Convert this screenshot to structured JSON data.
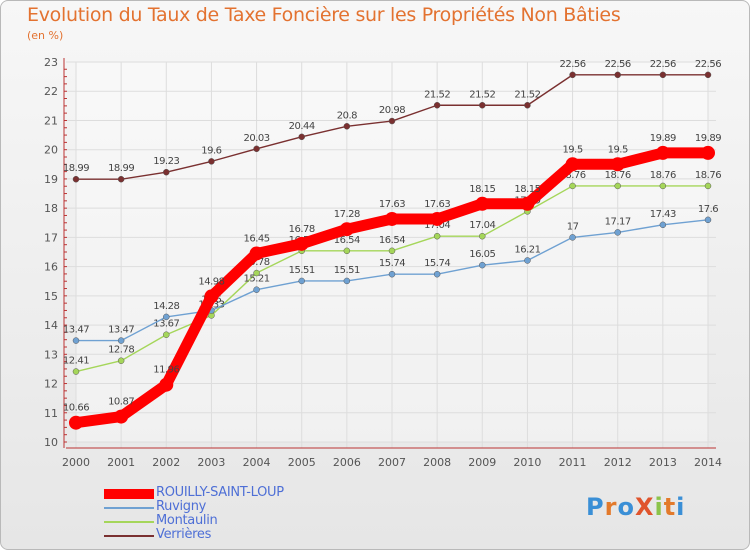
{
  "header": {
    "title": "Evolution du Taux de Taxe Foncière sur les Propriétés Non Bâties",
    "subtitle": "(en %)"
  },
  "logo": {
    "text": "ProXiti",
    "letters": [
      {
        "ch": "P",
        "color": "#3a8fd6"
      },
      {
        "ch": "r",
        "color": "#e37a2b"
      },
      {
        "ch": "o",
        "color": "#3a8fd6"
      },
      {
        "ch": "X",
        "color": "#e0542c"
      },
      {
        "ch": "i",
        "color": "#8bc34a"
      },
      {
        "ch": "t",
        "color": "#e37a2b"
      },
      {
        "ch": "i",
        "color": "#3a8fd6"
      }
    ]
  },
  "chart_data": {
    "type": "line",
    "title": "Evolution du Taux de Taxe Foncière sur les Propriétés Non Bâties",
    "ylabel": "(en %)",
    "x": [
      2000,
      2001,
      2002,
      2003,
      2004,
      2005,
      2006,
      2007,
      2008,
      2009,
      2010,
      2011,
      2012,
      2013,
      2014
    ],
    "ylim": [
      10,
      23
    ],
    "yticks": [
      10,
      11,
      12,
      13,
      14,
      15,
      16,
      17,
      18,
      19,
      20,
      21,
      22,
      23
    ],
    "grid": true,
    "legend": "bottom-left",
    "series": [
      {
        "name": "ROUILLY-SAINT-LOUP",
        "color": "#ff0000",
        "values": [
          10.66,
          10.87,
          11.96,
          14.98,
          16.45,
          16.78,
          17.28,
          17.63,
          17.63,
          18.15,
          18.15,
          19.5,
          19.5,
          19.89,
          19.89
        ]
      },
      {
        "name": "Ruvigny",
        "color": "#6fa1d2",
        "values": [
          13.47,
          13.47,
          14.28,
          14.5,
          15.21,
          15.51,
          15.51,
          15.74,
          15.74,
          16.05,
          16.21,
          17,
          17.17,
          17.43,
          17.6
        ]
      },
      {
        "name": "Montaulin",
        "color": "#a5d65a",
        "values": [
          12.41,
          12.78,
          13.67,
          14.33,
          15.78,
          16.54,
          16.54,
          16.54,
          17.04,
          17.04,
          17.89,
          18.76,
          18.76,
          18.76,
          18.76
        ]
      },
      {
        "name": "Verrières",
        "color": "#7a3030",
        "values": [
          18.99,
          18.99,
          19.23,
          19.6,
          20.03,
          20.44,
          20.8,
          20.98,
          21.52,
          21.52,
          21.52,
          22.56,
          22.56,
          22.56,
          22.56
        ]
      }
    ]
  }
}
